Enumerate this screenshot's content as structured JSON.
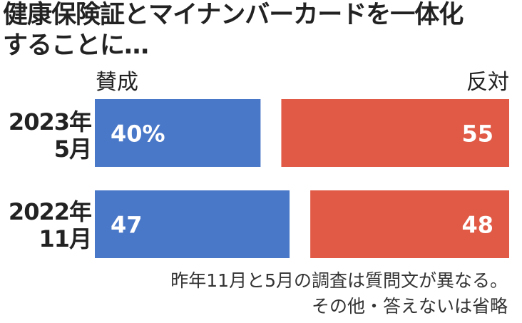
{
  "chart_data": {
    "type": "bar",
    "title_lines": [
      "健康保険証とマイナンバーカードを一体化",
      "することに…"
    ],
    "series": [
      {
        "name": "賛成",
        "values": [
          40,
          47
        ],
        "color": "#4a78c8"
      },
      {
        "name": "反対",
        "values": [
          55,
          48
        ],
        "color": "#e05a46"
      }
    ],
    "categories": [
      {
        "lines": [
          "2023年",
          "5月"
        ]
      },
      {
        "lines": [
          "2022年",
          "11月"
        ]
      }
    ],
    "value_labels": [
      [
        "40%",
        "55"
      ],
      [
        "47",
        "48"
      ]
    ],
    "xlim": [
      0,
      100
    ],
    "legend": "top",
    "notes": [
      "昨年11月と5月の調査は質問文が異なる。",
      "その他・答えないは省略"
    ]
  }
}
